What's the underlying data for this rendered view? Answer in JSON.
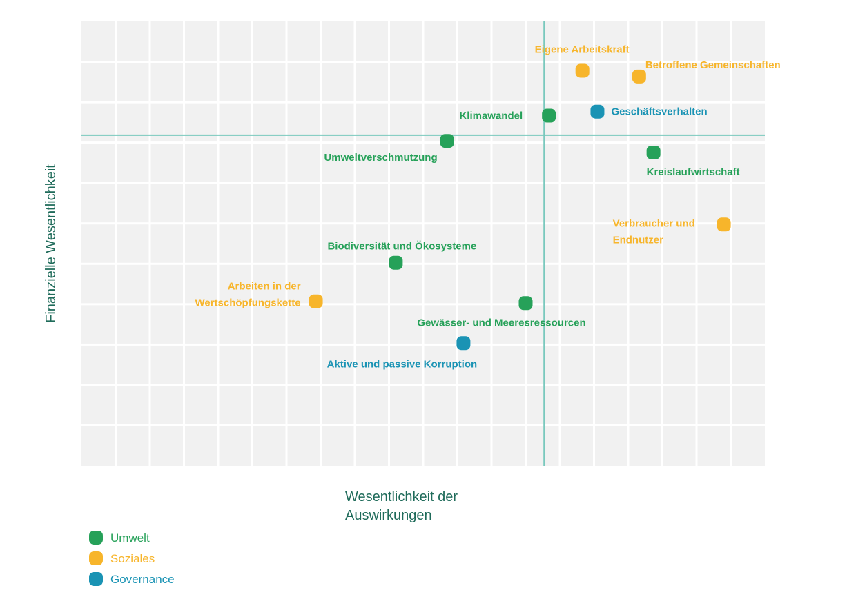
{
  "colors": {
    "plot_background": "#f1f1f1",
    "grid": "#ffffff",
    "threshold_line": "#79c8bd",
    "axis_title": "#1f6b5a",
    "Umwelt": "#26a159",
    "Soziales": "#f7b52b",
    "Governance": "#1a93b4"
  },
  "chart_data": {
    "type": "scatter",
    "xlabel_lines": [
      "Wesentlichkeit der",
      "Auswirkungen"
    ],
    "ylabel": "Finanzielle Wesentlichkeit",
    "xlim": [
      0,
      100
    ],
    "ylim": [
      0,
      100
    ],
    "grid": true,
    "thresholds": {
      "x": 67.7,
      "y": 74.4
    },
    "legend_position": "bottom-left",
    "legend": [
      {
        "key": "Umwelt",
        "label": "Umwelt"
      },
      {
        "key": "Soziales",
        "label": "Soziales"
      },
      {
        "key": "Governance",
        "label": "Governance"
      }
    ],
    "points": [
      {
        "label_lines": [
          "Eigene Arbeitskraft"
        ],
        "category": "Soziales",
        "x": 73.3,
        "y": 88.9,
        "anchor": "end",
        "dx": 68,
        "dy": -26
      },
      {
        "label_lines": [
          "Betroffene Gemeinschaften"
        ],
        "category": "Soziales",
        "x": 81.6,
        "y": 87.6,
        "anchor": "start",
        "dx": 9,
        "dy": -12
      },
      {
        "label_lines": [
          "Klimawandel"
        ],
        "category": "Umwelt",
        "x": 68.4,
        "y": 78.8,
        "anchor": "end",
        "dx": -38,
        "dy": 5
      },
      {
        "label_lines": [
          "Geschäftsverhalten"
        ],
        "category": "Governance",
        "x": 75.5,
        "y": 79.7,
        "anchor": "start",
        "dx": 20,
        "dy": 5
      },
      {
        "label_lines": [
          "Umweltverschmutzung"
        ],
        "category": "Umwelt",
        "x": 53.5,
        "y": 73.1,
        "anchor": "end",
        "dx": -14,
        "dy": 29
      },
      {
        "label_lines": [
          "Kreislaufwirtschaft"
        ],
        "category": "Umwelt",
        "x": 83.7,
        "y": 70.5,
        "anchor": "start",
        "dx": -10,
        "dy": 33
      },
      {
        "label_lines": [
          "Verbraucher und",
          "Endnutzer"
        ],
        "category": "Soziales",
        "x": 94.0,
        "y": 54.3,
        "anchor": "start",
        "dx": -161,
        "dy": 3
      },
      {
        "label_lines": [
          "Biodiversität und Ökosysteme"
        ],
        "category": "Umwelt",
        "x": 46.0,
        "y": 45.7,
        "anchor": "middle",
        "dx": 9,
        "dy": -19
      },
      {
        "label_lines": [
          "Arbeiten in der",
          "Wertschöpfungskette"
        ],
        "category": "Soziales",
        "x": 34.3,
        "y": 37.0,
        "anchor": "end",
        "dx": -22,
        "dy": -17
      },
      {
        "label_lines": [
          "Gewässer- und Meeresressourcen"
        ],
        "category": "Umwelt",
        "x": 65.0,
        "y": 36.6,
        "anchor": "middle",
        "dx": -35,
        "dy": 33
      },
      {
        "label_lines": [
          "Aktive und passive Korruption"
        ],
        "category": "Governance",
        "x": 55.9,
        "y": 27.6,
        "anchor": "middle",
        "dx": -89,
        "dy": 35
      }
    ]
  }
}
